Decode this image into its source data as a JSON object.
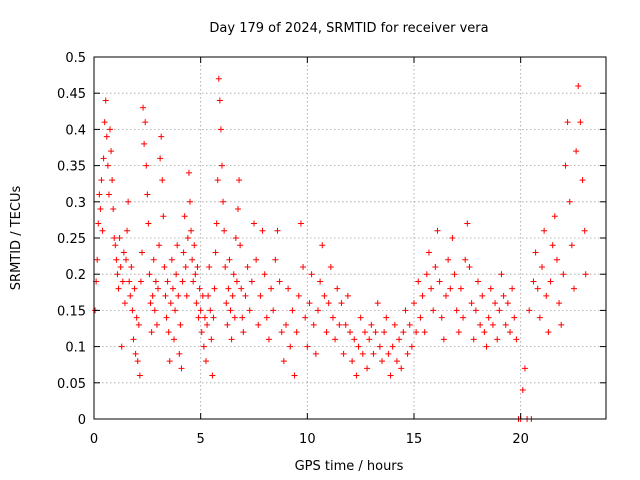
{
  "chart_data": {
    "type": "scatter",
    "marker": "plus",
    "title": "Day 179 of 2024, SRMTID for receiver vera",
    "xlabel": "GPS time / hours",
    "ylabel": "SRMTID / TECUs",
    "xlim": [
      0,
      24
    ],
    "ylim": [
      0,
      0.5
    ],
    "x_ticks": [
      0,
      5,
      10,
      15,
      20
    ],
    "y_ticks": [
      0,
      0.05,
      0.1,
      0.15,
      0.2,
      0.25,
      0.3,
      0.35,
      0.4,
      0.45,
      0.5
    ],
    "x_tick_labels": [
      "0",
      "5",
      "10",
      "15",
      "20"
    ],
    "y_tick_labels": [
      "0",
      "0.05",
      "0.1",
      "0.15",
      "0.2",
      "0.25",
      "0.3",
      "0.35",
      "0.4",
      "0.45",
      "0.5"
    ],
    "grid": true,
    "color": "#ff0000",
    "series": [
      {
        "name": "SRMTID",
        "points": [
          [
            0.05,
            0.15
          ],
          [
            0.1,
            0.19
          ],
          [
            0.15,
            0.22
          ],
          [
            0.2,
            0.27
          ],
          [
            0.25,
            0.31
          ],
          [
            0.3,
            0.29
          ],
          [
            0.35,
            0.33
          ],
          [
            0.4,
            0.26
          ],
          [
            0.45,
            0.36
          ],
          [
            0.5,
            0.41
          ],
          [
            0.55,
            0.44
          ],
          [
            0.6,
            0.39
          ],
          [
            0.65,
            0.35
          ],
          [
            0.7,
            0.31
          ],
          [
            0.75,
            0.4
          ],
          [
            0.8,
            0.37
          ],
          [
            0.85,
            0.33
          ],
          [
            0.9,
            0.29
          ],
          [
            0.95,
            0.25
          ],
          [
            1.0,
            0.24
          ],
          [
            1.05,
            0.22
          ],
          [
            1.1,
            0.2
          ],
          [
            1.15,
            0.18
          ],
          [
            1.2,
            0.25
          ],
          [
            1.25,
            0.21
          ],
          [
            1.3,
            0.1
          ],
          [
            1.35,
            0.19
          ],
          [
            1.4,
            0.23
          ],
          [
            1.45,
            0.16
          ],
          [
            1.5,
            0.22
          ],
          [
            1.55,
            0.26
          ],
          [
            1.6,
            0.3
          ],
          [
            1.65,
            0.19
          ],
          [
            1.7,
            0.17
          ],
          [
            1.75,
            0.21
          ],
          [
            1.8,
            0.15
          ],
          [
            1.85,
            0.11
          ],
          [
            1.9,
            0.18
          ],
          [
            1.95,
            0.09
          ],
          [
            2.0,
            0.14
          ],
          [
            2.05,
            0.08
          ],
          [
            2.1,
            0.13
          ],
          [
            2.15,
            0.06
          ],
          [
            2.2,
            0.19
          ],
          [
            2.25,
            0.23
          ],
          [
            2.3,
            0.43
          ],
          [
            2.35,
            0.38
          ],
          [
            2.4,
            0.41
          ],
          [
            2.45,
            0.35
          ],
          [
            2.5,
            0.31
          ],
          [
            2.55,
            0.27
          ],
          [
            2.6,
            0.2
          ],
          [
            2.65,
            0.16
          ],
          [
            2.7,
            0.12
          ],
          [
            2.75,
            0.17
          ],
          [
            2.8,
            0.22
          ],
          [
            2.85,
            0.15
          ],
          [
            2.9,
            0.19
          ],
          [
            2.95,
            0.13
          ],
          [
            3.0,
            0.18
          ],
          [
            3.05,
            0.24
          ],
          [
            3.1,
            0.36
          ],
          [
            3.15,
            0.39
          ],
          [
            3.2,
            0.33
          ],
          [
            3.25,
            0.28
          ],
          [
            3.3,
            0.21
          ],
          [
            3.35,
            0.17
          ],
          [
            3.4,
            0.14
          ],
          [
            3.45,
            0.19
          ],
          [
            3.5,
            0.12
          ],
          [
            3.55,
            0.08
          ],
          [
            3.6,
            0.16
          ],
          [
            3.65,
            0.22
          ],
          [
            3.7,
            0.18
          ],
          [
            3.75,
            0.11
          ],
          [
            3.8,
            0.15
          ],
          [
            3.85,
            0.2
          ],
          [
            3.9,
            0.24
          ],
          [
            3.95,
            0.17
          ],
          [
            4.0,
            0.09
          ],
          [
            4.05,
            0.13
          ],
          [
            4.1,
            0.07
          ],
          [
            4.15,
            0.19
          ],
          [
            4.2,
            0.23
          ],
          [
            4.25,
            0.28
          ],
          [
            4.3,
            0.21
          ],
          [
            4.35,
            0.17
          ],
          [
            4.4,
            0.25
          ],
          [
            4.45,
            0.34
          ],
          [
            4.5,
            0.3
          ],
          [
            4.55,
            0.26
          ],
          [
            4.6,
            0.22
          ],
          [
            4.65,
            0.19
          ],
          [
            4.7,
            0.24
          ],
          [
            4.75,
            0.2
          ],
          [
            4.8,
            0.16
          ],
          [
            4.85,
            0.21
          ],
          [
            4.9,
            0.14
          ],
          [
            4.95,
            0.18
          ],
          [
            5.0,
            0.15
          ],
          [
            5.05,
            0.12
          ],
          [
            5.1,
            0.17
          ],
          [
            5.15,
            0.1
          ],
          [
            5.2,
            0.14
          ],
          [
            5.25,
            0.08
          ],
          [
            5.3,
            0.13
          ],
          [
            5.35,
            0.17
          ],
          [
            5.4,
            0.21
          ],
          [
            5.45,
            0.15
          ],
          [
            5.5,
            0.11
          ],
          [
            5.55,
            0.06
          ],
          [
            5.6,
            0.14
          ],
          [
            5.65,
            0.18
          ],
          [
            5.7,
            0.23
          ],
          [
            5.75,
            0.27
          ],
          [
            5.8,
            0.33
          ],
          [
            5.85,
            0.47
          ],
          [
            5.9,
            0.44
          ],
          [
            5.95,
            0.4
          ],
          [
            6.0,
            0.35
          ],
          [
            6.05,
            0.3
          ],
          [
            6.1,
            0.26
          ],
          [
            6.15,
            0.21
          ],
          [
            6.2,
            0.16
          ],
          [
            6.25,
            0.13
          ],
          [
            6.3,
            0.18
          ],
          [
            6.35,
            0.22
          ],
          [
            6.4,
            0.15
          ],
          [
            6.45,
            0.11
          ],
          [
            6.5,
            0.17
          ],
          [
            6.55,
            0.2
          ],
          [
            6.6,
            0.14
          ],
          [
            6.65,
            0.25
          ],
          [
            6.7,
            0.19
          ],
          [
            6.75,
            0.29
          ],
          [
            6.8,
            0.33
          ],
          [
            6.85,
            0.24
          ],
          [
            6.9,
            0.18
          ],
          [
            6.95,
            0.14
          ],
          [
            7.0,
            0.12
          ],
          [
            7.1,
            0.17
          ],
          [
            7.2,
            0.21
          ],
          [
            7.3,
            0.15
          ],
          [
            7.4,
            0.19
          ],
          [
            7.5,
            0.27
          ],
          [
            7.6,
            0.22
          ],
          [
            7.7,
            0.13
          ],
          [
            7.8,
            0.17
          ],
          [
            7.9,
            0.26
          ],
          [
            8.0,
            0.2
          ],
          [
            8.1,
            0.14
          ],
          [
            8.2,
            0.11
          ],
          [
            8.3,
            0.18
          ],
          [
            8.4,
            0.15
          ],
          [
            8.5,
            0.22
          ],
          [
            8.6,
            0.26
          ],
          [
            8.7,
            0.19
          ],
          [
            8.8,
            0.12
          ],
          [
            8.9,
            0.08
          ],
          [
            9.0,
            0.13
          ],
          [
            9.1,
            0.18
          ],
          [
            9.2,
            0.1
          ],
          [
            9.3,
            0.15
          ],
          [
            9.4,
            0.06
          ],
          [
            9.5,
            0.12
          ],
          [
            9.6,
            0.17
          ],
          [
            9.7,
            0.27
          ],
          [
            9.8,
            0.21
          ],
          [
            9.9,
            0.14
          ],
          [
            10.0,
            0.1
          ],
          [
            10.1,
            0.16
          ],
          [
            10.2,
            0.2
          ],
          [
            10.3,
            0.13
          ],
          [
            10.4,
            0.09
          ],
          [
            10.5,
            0.15
          ],
          [
            10.6,
            0.19
          ],
          [
            10.7,
            0.24
          ],
          [
            10.8,
            0.17
          ],
          [
            10.9,
            0.12
          ],
          [
            11.0,
            0.16
          ],
          [
            11.1,
            0.21
          ],
          [
            11.2,
            0.14
          ],
          [
            11.3,
            0.11
          ],
          [
            11.4,
            0.18
          ],
          [
            11.5,
            0.13
          ],
          [
            11.6,
            0.16
          ],
          [
            11.7,
            0.09
          ],
          [
            11.8,
            0.13
          ],
          [
            11.9,
            0.17
          ],
          [
            12.0,
            0.12
          ],
          [
            12.1,
            0.08
          ],
          [
            12.2,
            0.11
          ],
          [
            12.3,
            0.06
          ],
          [
            12.4,
            0.1
          ],
          [
            12.5,
            0.14
          ],
          [
            12.6,
            0.09
          ],
          [
            12.7,
            0.12
          ],
          [
            12.8,
            0.07
          ],
          [
            12.9,
            0.11
          ],
          [
            13.0,
            0.13
          ],
          [
            13.1,
            0.09
          ],
          [
            13.2,
            0.12
          ],
          [
            13.3,
            0.16
          ],
          [
            13.4,
            0.1
          ],
          [
            13.5,
            0.08
          ],
          [
            13.6,
            0.12
          ],
          [
            13.7,
            0.14
          ],
          [
            13.8,
            0.09
          ],
          [
            13.9,
            0.06
          ],
          [
            14.0,
            0.1
          ],
          [
            14.1,
            0.13
          ],
          [
            14.2,
            0.08
          ],
          [
            14.3,
            0.11
          ],
          [
            14.4,
            0.07
          ],
          [
            14.5,
            0.12
          ],
          [
            14.6,
            0.15
          ],
          [
            14.7,
            0.09
          ],
          [
            14.8,
            0.13
          ],
          [
            14.9,
            0.1
          ],
          [
            15.0,
            0.16
          ],
          [
            15.1,
            0.12
          ],
          [
            15.2,
            0.19
          ],
          [
            15.3,
            0.14
          ],
          [
            15.4,
            0.17
          ],
          [
            15.5,
            0.12
          ],
          [
            15.6,
            0.2
          ],
          [
            15.7,
            0.23
          ],
          [
            15.8,
            0.18
          ],
          [
            15.9,
            0.15
          ],
          [
            16.0,
            0.21
          ],
          [
            16.1,
            0.26
          ],
          [
            16.2,
            0.19
          ],
          [
            16.3,
            0.14
          ],
          [
            16.4,
            0.11
          ],
          [
            16.5,
            0.17
          ],
          [
            16.6,
            0.22
          ],
          [
            16.7,
            0.18
          ],
          [
            16.8,
            0.25
          ],
          [
            16.9,
            0.2
          ],
          [
            17.0,
            0.15
          ],
          [
            17.1,
            0.12
          ],
          [
            17.2,
            0.18
          ],
          [
            17.3,
            0.14
          ],
          [
            17.4,
            0.22
          ],
          [
            17.5,
            0.27
          ],
          [
            17.6,
            0.21
          ],
          [
            17.7,
            0.16
          ],
          [
            17.8,
            0.11
          ],
          [
            17.9,
            0.15
          ],
          [
            18.0,
            0.19
          ],
          [
            18.1,
            0.13
          ],
          [
            18.2,
            0.17
          ],
          [
            18.3,
            0.12
          ],
          [
            18.4,
            0.1
          ],
          [
            18.5,
            0.14
          ],
          [
            18.6,
            0.18
          ],
          [
            18.7,
            0.13
          ],
          [
            18.8,
            0.16
          ],
          [
            18.9,
            0.11
          ],
          [
            19.0,
            0.15
          ],
          [
            19.1,
            0.2
          ],
          [
            19.2,
            0.17
          ],
          [
            19.3,
            0.13
          ],
          [
            19.4,
            0.16
          ],
          [
            19.5,
            0.12
          ],
          [
            19.6,
            0.18
          ],
          [
            19.7,
            0.14
          ],
          [
            19.8,
            0.11
          ],
          [
            19.9,
            0.0
          ],
          [
            20.0,
            0.0
          ],
          [
            20.1,
            0.04
          ],
          [
            20.2,
            0.07
          ],
          [
            20.3,
            0.0
          ],
          [
            20.4,
            0.15
          ],
          [
            20.5,
            0.0
          ],
          [
            20.6,
            0.19
          ],
          [
            20.7,
            0.23
          ],
          [
            20.8,
            0.18
          ],
          [
            20.9,
            0.14
          ],
          [
            21.0,
            0.21
          ],
          [
            21.1,
            0.26
          ],
          [
            21.2,
            0.17
          ],
          [
            21.3,
            0.12
          ],
          [
            21.4,
            0.19
          ],
          [
            21.5,
            0.24
          ],
          [
            21.6,
            0.28
          ],
          [
            21.7,
            0.22
          ],
          [
            21.8,
            0.16
          ],
          [
            21.9,
            0.13
          ],
          [
            22.0,
            0.2
          ],
          [
            22.1,
            0.35
          ],
          [
            22.2,
            0.41
          ],
          [
            22.3,
            0.3
          ],
          [
            22.4,
            0.24
          ],
          [
            22.5,
            0.18
          ],
          [
            22.6,
            0.37
          ],
          [
            22.7,
            0.46
          ],
          [
            22.8,
            0.41
          ],
          [
            22.9,
            0.33
          ],
          [
            23.0,
            0.26
          ],
          [
            23.05,
            0.2
          ]
        ]
      }
    ]
  }
}
